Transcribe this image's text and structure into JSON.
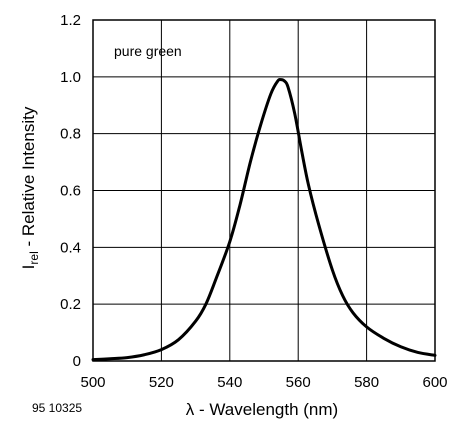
{
  "chart_data": {
    "type": "line",
    "title": "",
    "annotation": "pure green",
    "figure_id": "95 10325",
    "xlabel": "λ - Wavelength (nm)",
    "ylabel_main": "I",
    "ylabel_sub": "rel",
    "ylabel_rest": " - Relative Intensity",
    "xlim": [
      500,
      600
    ],
    "ylim": [
      0,
      1.2
    ],
    "x_ticks": [
      500,
      520,
      540,
      560,
      580,
      600
    ],
    "x_tick_labels": [
      "500",
      "520",
      "540",
      "560",
      "580",
      "600"
    ],
    "y_ticks": [
      0,
      0.2,
      0.4,
      0.6,
      0.8,
      1.0,
      1.2
    ],
    "y_tick_labels": [
      "0",
      "0.2",
      "0.4",
      "0.6",
      "0.8",
      "1.0",
      "1.2"
    ],
    "grid": true,
    "series": [
      {
        "color": "#000000",
        "x": [
          500,
          505,
          510,
          515,
          520,
          525,
          530,
          533,
          536,
          540,
          543,
          546,
          549,
          552,
          554,
          555,
          556,
          557,
          559,
          561,
          563,
          566,
          570,
          573,
          576,
          580,
          585,
          590,
          595,
          600
        ],
        "y": [
          0.005,
          0.008,
          0.012,
          0.022,
          0.04,
          0.075,
          0.14,
          0.2,
          0.29,
          0.42,
          0.55,
          0.7,
          0.83,
          0.94,
          0.985,
          0.99,
          0.985,
          0.965,
          0.87,
          0.74,
          0.62,
          0.48,
          0.32,
          0.23,
          0.17,
          0.12,
          0.08,
          0.05,
          0.03,
          0.02
        ]
      }
    ]
  }
}
